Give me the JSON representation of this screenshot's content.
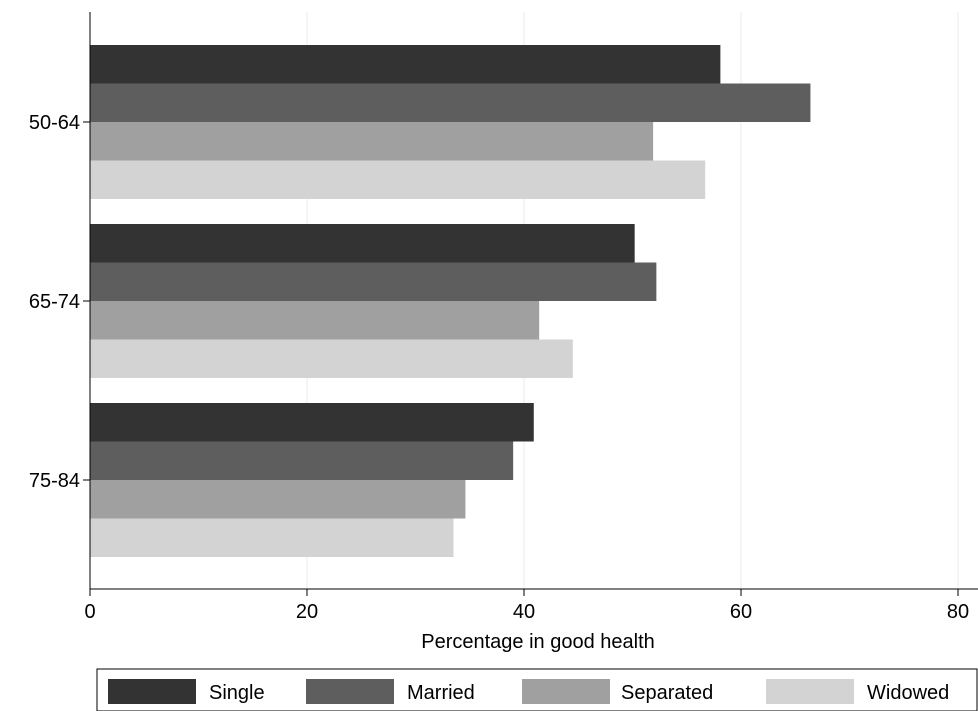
{
  "chart_data": {
    "type": "bar",
    "orientation": "horizontal",
    "categories": [
      "50-64",
      "65-74",
      "75-84"
    ],
    "series": [
      {
        "name": "Single",
        "values": [
          58.1,
          50.2,
          40.9
        ],
        "color": "#333333"
      },
      {
        "name": "Married",
        "values": [
          66.4,
          52.2,
          39.0
        ],
        "color": "#5e5e5e"
      },
      {
        "name": "Separated",
        "values": [
          51.9,
          41.4,
          34.6
        ],
        "color": "#a0a0a0"
      },
      {
        "name": "Widowed",
        "values": [
          56.7,
          44.5,
          33.5
        ],
        "color": "#d3d3d3"
      }
    ],
    "title": "",
    "xlabel": "Percentage in good health",
    "ylabel": "",
    "xlim": [
      0,
      80
    ],
    "xticks": [
      0,
      20,
      40,
      60,
      80
    ],
    "grid": true,
    "legend_position": "bottom"
  }
}
